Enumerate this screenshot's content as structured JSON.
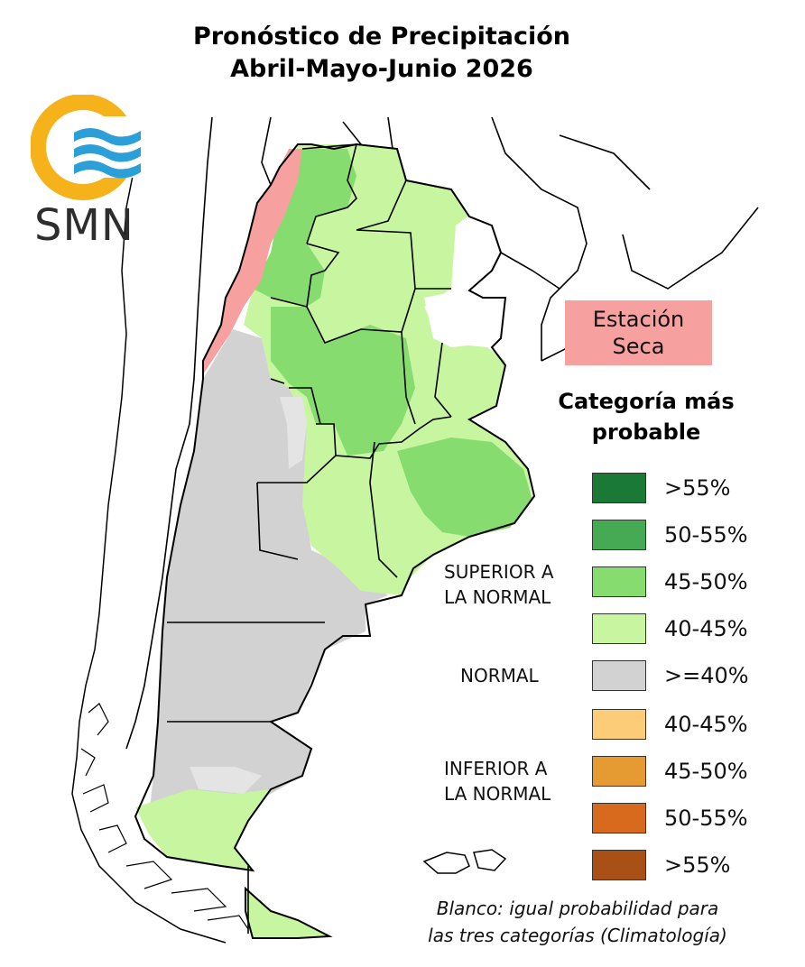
{
  "title": {
    "line1": "Pronóstico de Precipitación",
    "line2": "Abril-Mayo-Junio 2026"
  },
  "logo": {
    "text": "SMN",
    "icon": "smn-logo-icon"
  },
  "dry_station": {
    "line1": "Estación",
    "line2": "Seca",
    "color": "#f7a0a0"
  },
  "legend": {
    "title_line1": "Categoría más",
    "title_line2": "probable",
    "categories": {
      "superior": {
        "line1": "SUPERIOR A",
        "line2": "LA NORMAL"
      },
      "normal": {
        "line1": "NORMAL"
      },
      "inferior": {
        "line1": "INFERIOR A",
        "line2": "LA NORMAL"
      }
    },
    "items": [
      {
        "label": ">55%",
        "color": "#1a7a35"
      },
      {
        "label": "50-55%",
        "color": "#46aa55"
      },
      {
        "label": "45-50%",
        "color": "#86dc6e"
      },
      {
        "label": "40-45%",
        "color": "#c8f5a0"
      },
      {
        "label": ">=40%",
        "color": "#d2d2d2"
      },
      {
        "label": "40-45%",
        "color": "#fdcc78"
      },
      {
        "label": "45-50%",
        "color": "#e69a32"
      },
      {
        "label": "50-55%",
        "color": "#d86a1e"
      },
      {
        "label": ">55%",
        "color": "#a85016"
      }
    ]
  },
  "note": {
    "line1": "Blanco: igual probabilidad para",
    "line2": "las tres categorías (Climatología)"
  }
}
